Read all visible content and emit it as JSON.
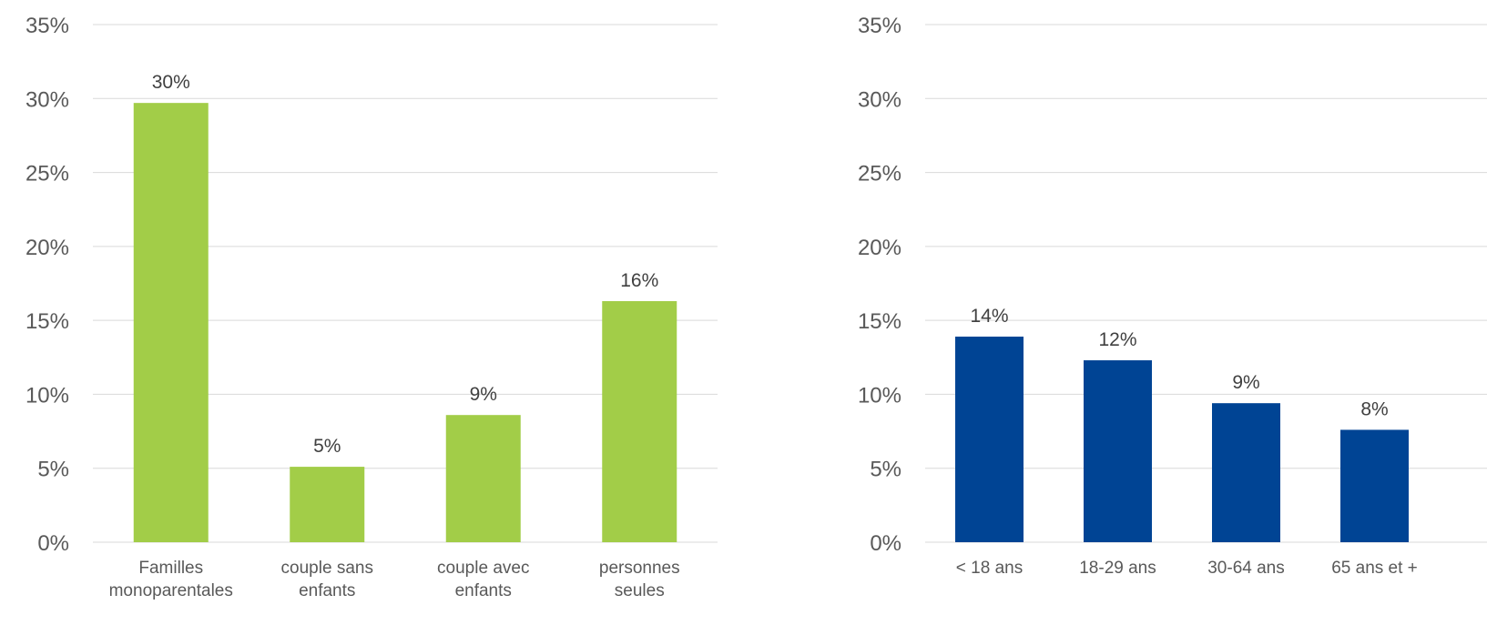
{
  "chart_data": [
    {
      "type": "bar",
      "categories": [
        [
          "Familles",
          "monoparentales"
        ],
        [
          "couple sans",
          "enfants"
        ],
        [
          "couple avec",
          "enfants"
        ],
        [
          "personnes",
          "seules"
        ]
      ],
      "values": [
        29.7,
        5.1,
        8.6,
        16.3
      ],
      "data_labels": [
        "30%",
        "5%",
        "9%",
        "16%"
      ],
      "ylim": [
        0,
        35
      ],
      "yticks": [
        0,
        5,
        10,
        15,
        20,
        25,
        30,
        35
      ],
      "ytick_labels": [
        "0%",
        "5%",
        "10%",
        "15%",
        "20%",
        "25%",
        "30%",
        "35%"
      ],
      "grid": true,
      "color": "#a2cd48"
    },
    {
      "type": "bar",
      "categories": [
        [
          "< 18 ans"
        ],
        [
          "18-29 ans"
        ],
        [
          "30-64 ans"
        ],
        [
          "65 ans et +"
        ]
      ],
      "values": [
        13.9,
        12.3,
        9.4,
        7.6
      ],
      "data_labels": [
        "14%",
        "12%",
        "9%",
        "8%"
      ],
      "ylim": [
        0,
        35
      ],
      "yticks": [
        0,
        5,
        10,
        15,
        20,
        25,
        30,
        35
      ],
      "ytick_labels": [
        "0%",
        "5%",
        "10%",
        "15%",
        "20%",
        "25%",
        "30%",
        "35%"
      ],
      "grid": true,
      "color": "#004494"
    }
  ]
}
